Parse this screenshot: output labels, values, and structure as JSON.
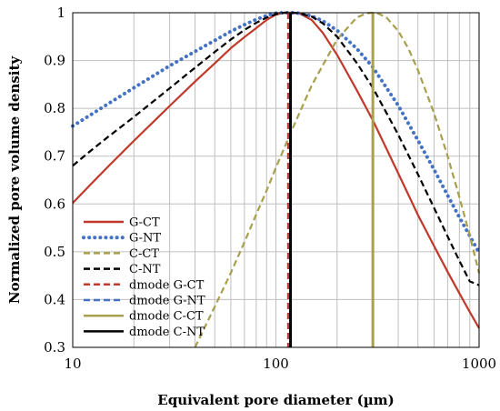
{
  "chart_data": {
    "type": "line",
    "title": "",
    "xlabel": "Equivalent pore diameter (µm)",
    "ylabel": "Normalized pore volume density",
    "xscale": "log",
    "xlim": [
      10,
      1000
    ],
    "ylim": [
      0.3,
      1.0
    ],
    "x_ticks": [
      10,
      100,
      1000
    ],
    "x_tick_labels": [
      "10",
      "100",
      "1000"
    ],
    "y_ticks": [
      0.3,
      0.4,
      0.5,
      0.6,
      0.7,
      0.8,
      0.9,
      1.0
    ],
    "y_tick_labels": [
      "0.3",
      "0.4",
      "0.5",
      "0.6",
      "0.7",
      "0.8",
      "0.9",
      "1"
    ],
    "grid": true,
    "legend_position": "left",
    "series": [
      {
        "name": "G-CT",
        "style": "solid",
        "color": "#c0392b",
        "x": [
          10,
          12,
          15,
          20,
          30,
          40,
          50,
          60,
          70,
          80,
          90,
          100,
          110,
          120,
          130,
          150,
          170,
          200,
          250,
          300,
          400,
          500,
          600,
          700,
          800,
          900,
          1000
        ],
        "y": [
          0.602,
          0.637,
          0.679,
          0.732,
          0.805,
          0.856,
          0.894,
          0.926,
          0.949,
          0.968,
          0.985,
          0.996,
          1.0,
          1.0,
          0.999,
          0.985,
          0.958,
          0.912,
          0.838,
          0.775,
          0.664,
          0.577,
          0.512,
          0.458,
          0.413,
          0.374,
          0.34
        ]
      },
      {
        "name": "G-NT",
        "style": "dotted",
        "color": "#4472c4",
        "x": [
          10,
          12,
          15,
          20,
          30,
          40,
          50,
          60,
          70,
          80,
          90,
          100,
          110,
          120,
          130,
          150,
          170,
          200,
          250,
          300,
          400,
          500,
          600,
          700,
          800,
          900,
          1000
        ],
        "y": [
          0.763,
          0.784,
          0.81,
          0.843,
          0.889,
          0.919,
          0.942,
          0.961,
          0.975,
          0.986,
          0.994,
          0.999,
          1.0,
          1.0,
          0.999,
          0.993,
          0.983,
          0.963,
          0.925,
          0.886,
          0.806,
          0.733,
          0.672,
          0.618,
          0.572,
          0.533,
          0.498
        ]
      },
      {
        "name": "C-CT",
        "style": "dashed",
        "color": "#a8a04e",
        "x": [
          40,
          50,
          60,
          70,
          80,
          90,
          100,
          120,
          150,
          200,
          250,
          280,
          300,
          320,
          350,
          400,
          450,
          500,
          600,
          700,
          800,
          900,
          1000
        ],
        "y": [
          0.3,
          0.385,
          0.456,
          0.52,
          0.578,
          0.628,
          0.676,
          0.755,
          0.848,
          0.944,
          0.99,
          0.999,
          1.0,
          0.998,
          0.99,
          0.962,
          0.924,
          0.88,
          0.79,
          0.7,
          0.614,
          0.534,
          0.455
        ]
      },
      {
        "name": "C-NT",
        "style": "dashed",
        "color": "#000000",
        "x": [
          10,
          12,
          15,
          20,
          30,
          40,
          50,
          60,
          70,
          80,
          90,
          100,
          110,
          120,
          130,
          150,
          170,
          200,
          250,
          300,
          400,
          500,
          600,
          700,
          800,
          900,
          1000
        ],
        "y": [
          0.68,
          0.708,
          0.741,
          0.782,
          0.842,
          0.885,
          0.918,
          0.944,
          0.964,
          0.979,
          0.99,
          0.997,
          1.0,
          1.0,
          0.999,
          0.992,
          0.978,
          0.95,
          0.895,
          0.843,
          0.745,
          0.662,
          0.592,
          0.532,
          0.481,
          0.438,
          0.43
        ]
      }
    ],
    "vertical_lines": [
      {
        "name": "dmode G-CT",
        "x": 115,
        "style": "dashed",
        "color": "#c0392b"
      },
      {
        "name": "dmode G-NT",
        "x": 115,
        "style": "dashed",
        "color": "#4472c4"
      },
      {
        "name": "dmode C-CT",
        "x": 300,
        "style": "solid",
        "color": "#a8a04e"
      },
      {
        "name": "dmode C-NT",
        "x": 118,
        "style": "solid",
        "color": "#000000"
      }
    ]
  }
}
